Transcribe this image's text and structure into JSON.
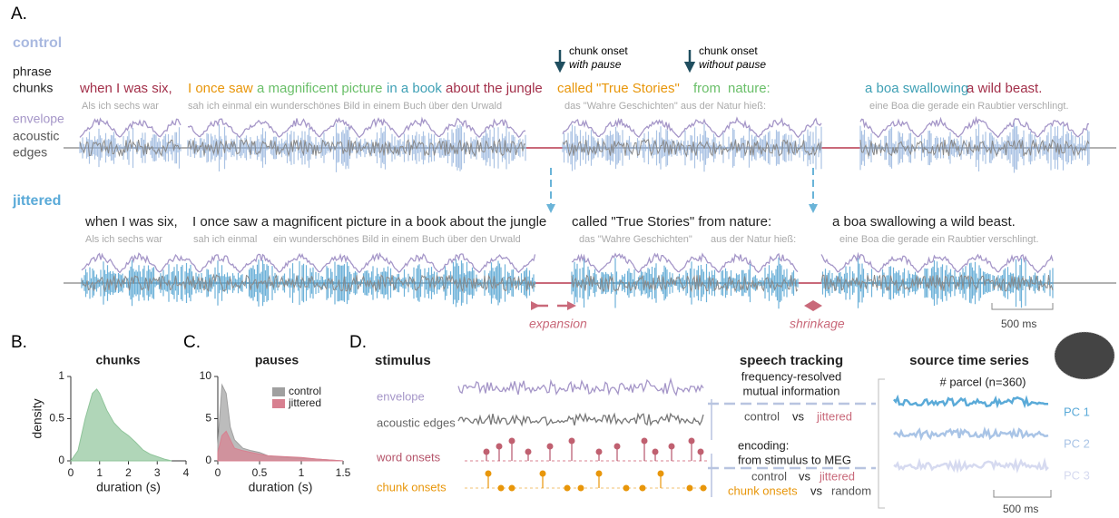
{
  "panel_labels": {
    "a": "A.",
    "b": "B.",
    "c": "C.",
    "d": "D."
  },
  "panel_a": {
    "control_label": "control",
    "row_labels": [
      "phrase",
      "chunks",
      "envelope",
      "acoustic",
      "edges"
    ],
    "jittered_label": "jittered",
    "annotations": [
      {
        "line1": "chunk onset",
        "line2": "with pause"
      },
      {
        "line1": "chunk onset",
        "line2": "without pause"
      }
    ],
    "control_phrases": [
      "when I was six,",
      "I once saw",
      "a magnificent picture",
      "in a book",
      "about the jungle",
      "called",
      "\"True Stories\"",
      "from",
      "nature:",
      "a boa swallowing",
      "a wild beast."
    ],
    "control_german": [
      "Als ich sechs war",
      "sah ich einmal ein wunderschönes Bild in einem Buch über den Urwald",
      "das  \"Wahre Geschichten\"  aus der Natur hieß:",
      "eine Boa die gerade ein Raubtier verschlingt."
    ],
    "jittered_phrases": [
      "when I was six,",
      "I once saw a magnificent picture in a book about the jungle",
      "called  \"True Stories\"  from   nature:",
      "a boa swallowing a wild beast."
    ],
    "jittered_german": [
      "Als ich sechs war",
      "sah ich einmal",
      "ein wunderschönes Bild in einem Buch über den Urwald",
      "das  \"Wahre Geschichten\"",
      "aus der Natur hieß:",
      "eine Boa die gerade ein Raubtier verschlingt."
    ],
    "expansion": "expansion",
    "shrinkage": "shrinkage",
    "scale": "500 ms"
  },
  "chart_data": [
    {
      "type": "area",
      "title": "chunks",
      "xlabel": "duration (s)",
      "ylabel": "density",
      "x": [
        0,
        0.25,
        0.5,
        0.75,
        0.9,
        1,
        1.25,
        1.5,
        1.75,
        2,
        2.25,
        2.5,
        2.75,
        3,
        3.25,
        3.5
      ],
      "values": [
        0,
        0.12,
        0.5,
        0.8,
        0.85,
        0.8,
        0.6,
        0.45,
        0.36,
        0.3,
        0.22,
        0.13,
        0.08,
        0.05,
        0.02,
        0
      ],
      "color": "#8fc49a",
      "xlim": [
        0,
        4
      ],
      "ylim": [
        0,
        1
      ],
      "xticks": [
        0,
        1,
        2,
        3,
        4
      ],
      "yticks": [
        0,
        0.5,
        1
      ]
    },
    {
      "type": "area",
      "title": "pauses",
      "xlabel": "duration (s)",
      "x": [
        0,
        0.05,
        0.1,
        0.15,
        0.2,
        0.3,
        0.4,
        0.5,
        0.6,
        0.8,
        1,
        1.2,
        1.5
      ],
      "series": [
        {
          "name": "control",
          "color": "#a0a0a0",
          "values": [
            2,
            9,
            8,
            4,
            2.5,
            1.5,
            1.2,
            1,
            0.6,
            0.4,
            0.3,
            0.2,
            0
          ]
        },
        {
          "name": "jittered",
          "color": "#d88090",
          "values": [
            1,
            3,
            3.5,
            2.5,
            1.5,
            1.2,
            1,
            0.8,
            0.6,
            0.5,
            0.4,
            0.2,
            0
          ]
        }
      ],
      "xlim": [
        0,
        1.5
      ],
      "ylim": [
        0,
        10
      ],
      "xticks": [
        0,
        0.5,
        1,
        1.5
      ],
      "yticks": [
        0,
        5,
        10
      ],
      "legend": "upper right"
    }
  ],
  "panel_d": {
    "stimulus": "stimulus",
    "features": [
      "envelope",
      "acoustic edges",
      "word onsets",
      "chunk onsets"
    ],
    "speech_tracking": {
      "title": "speech tracking",
      "line1": "frequency-resolved",
      "line2": "mutual information",
      "control": "control",
      "vs": "vs",
      "jittered": "jittered"
    },
    "encoding": {
      "line1": "encoding:",
      "line2": "from stimulus to MEG",
      "control": "control",
      "vs1": "vs",
      "jittered": "jittered",
      "chunk": "chunk onsets",
      "vs2": "vs",
      "random": "random"
    },
    "source": {
      "title": "source time series",
      "parcel": "# parcel (n=360)",
      "pcs": [
        "PC 1",
        "PC 2",
        "PC 3"
      ],
      "scale": "500 ms"
    }
  }
}
